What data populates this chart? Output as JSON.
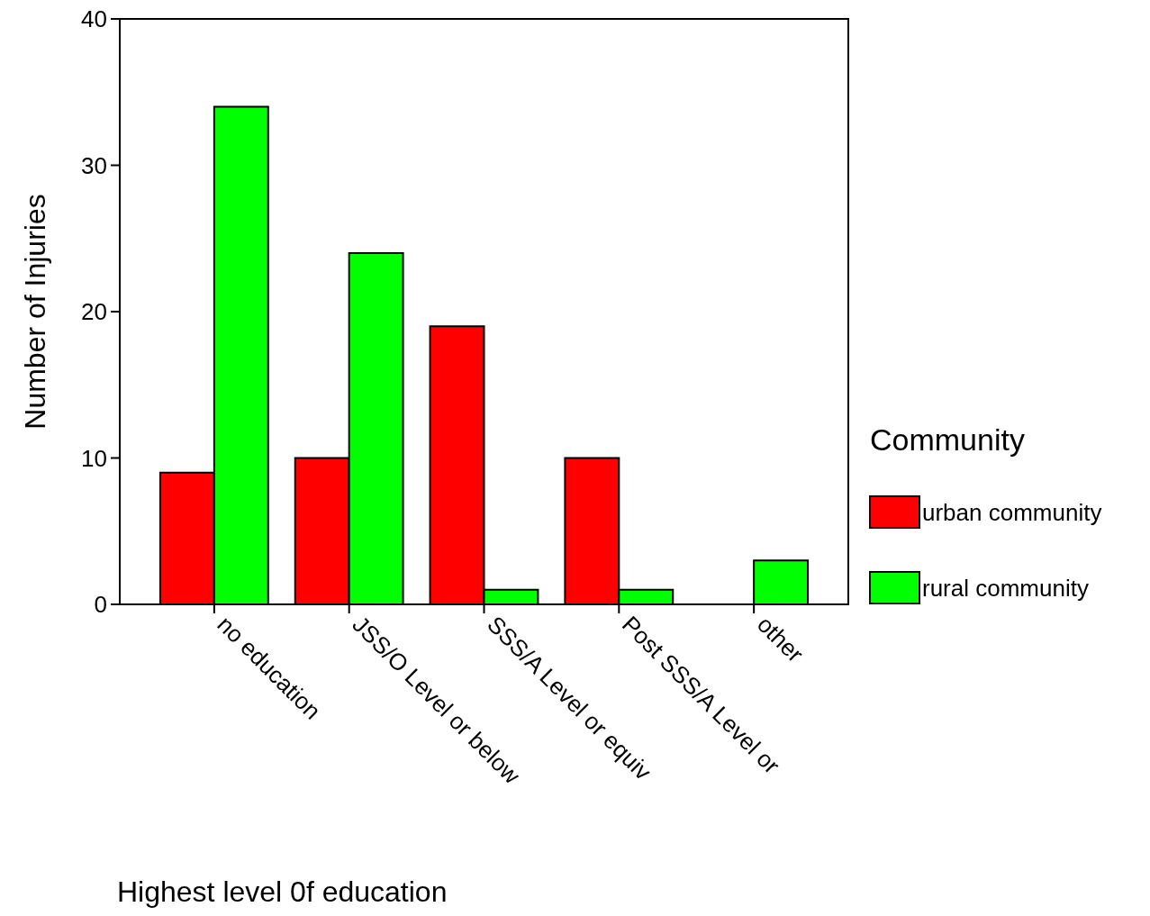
{
  "chart_data": {
    "type": "bar",
    "xlabel": "Highest level 0f education",
    "ylabel": "Number of Injuries",
    "legend_title": "Community",
    "categories": [
      "no education",
      "JSS/O Level or below",
      "SSS/A Level or equiv",
      "Post SSS/A Level or",
      "other"
    ],
    "series": [
      {
        "name": "urban community",
        "color": "#ff0000",
        "values": [
          9,
          10,
          19,
          10,
          null
        ]
      },
      {
        "name": "rural community",
        "color": "#00ff00",
        "values": [
          34,
          24,
          1,
          1,
          3
        ]
      }
    ],
    "ylim": [
      0,
      40
    ],
    "yticks": [
      0,
      10,
      20,
      30,
      40
    ],
    "grid": false,
    "legend": "right"
  }
}
